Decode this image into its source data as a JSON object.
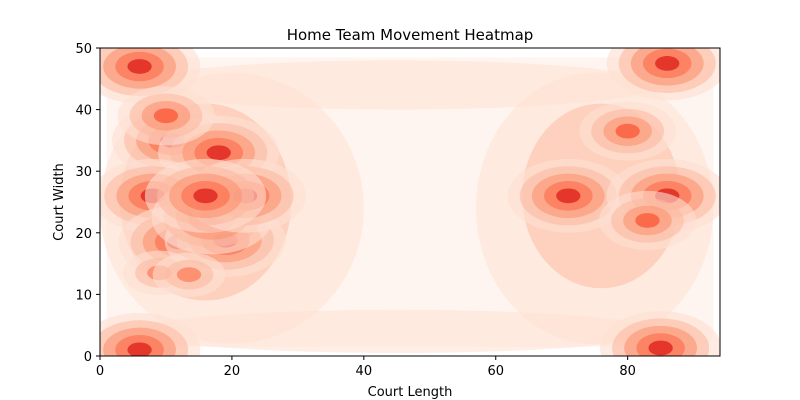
{
  "chart_data": {
    "type": "heatmap",
    "title": "Home Team Movement Heatmap",
    "xlabel": "Court Length",
    "ylabel": "Court Width",
    "xlim": [
      0,
      94
    ],
    "ylim": [
      0,
      50
    ],
    "xticks": [
      0,
      20,
      40,
      60,
      80
    ],
    "yticks": [
      0,
      10,
      20,
      30,
      40,
      50
    ],
    "colormap": [
      "#fff5f0",
      "#fee0d2",
      "#fcbba1",
      "#fc9272",
      "#fb6a4a",
      "#e4362a"
    ],
    "hotspots": [
      {
        "x": 6,
        "y": 47,
        "level": 5
      },
      {
        "x": 86,
        "y": 47.5,
        "level": 5
      },
      {
        "x": 6,
        "y": 1,
        "level": 5
      },
      {
        "x": 85,
        "y": 1.3,
        "level": 5
      },
      {
        "x": 11,
        "y": 35,
        "level": 5
      },
      {
        "x": 18,
        "y": 33,
        "level": 5
      },
      {
        "x": 8,
        "y": 26,
        "level": 5
      },
      {
        "x": 12,
        "y": 18.5,
        "level": 5
      },
      {
        "x": 19,
        "y": 18.8,
        "level": 5
      },
      {
        "x": 17,
        "y": 22.5,
        "level": 5
      },
      {
        "x": 22,
        "y": 26,
        "level": 5
      },
      {
        "x": 16,
        "y": 26,
        "level": 5
      },
      {
        "x": 10,
        "y": 39,
        "level": 4
      },
      {
        "x": 71,
        "y": 26,
        "level": 5
      },
      {
        "x": 86,
        "y": 26,
        "level": 5
      },
      {
        "x": 80,
        "y": 36.5,
        "level": 4
      },
      {
        "x": 83,
        "y": 22,
        "level": 4
      },
      {
        "x": 9,
        "y": 13.5,
        "level": 3
      },
      {
        "x": 13.5,
        "y": 13.2,
        "level": 3
      }
    ]
  }
}
